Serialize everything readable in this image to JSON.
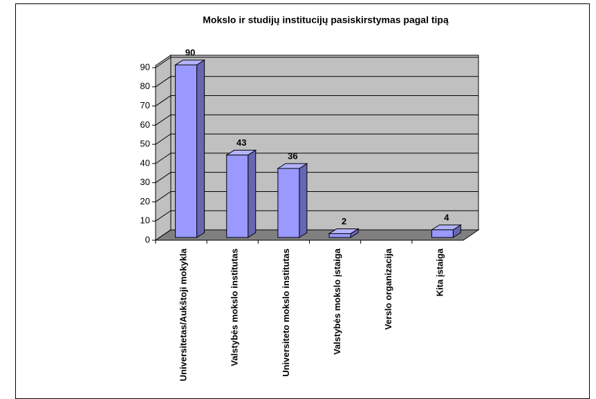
{
  "chart_data": {
    "type": "bar3d",
    "title": "Mokslo ir studijų institucijų pasiskirstymas pagal tipą",
    "categories": [
      "Universitetas/Aukštoji mokykla",
      "Valstybės mokslo institutas",
      "Universiteto mokslo institutas",
      "Valstybės mokslo įstaiga",
      "Verslo organizacija",
      "Kita įstaiga"
    ],
    "values": [
      90,
      43,
      36,
      2,
      null,
      4
    ],
    "color": "#9999ff",
    "ylim": [
      0,
      90
    ],
    "yticks": [
      0,
      10,
      20,
      30,
      40,
      50,
      60,
      70,
      80,
      90
    ],
    "grid": true
  }
}
